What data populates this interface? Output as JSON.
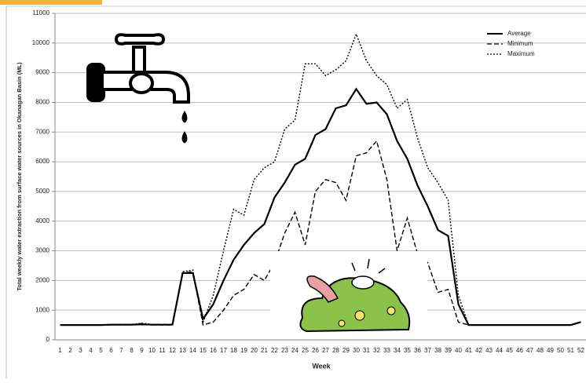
{
  "chart_data": {
    "type": "line",
    "y_label": "Total weekly water extraction from surface water sources in Okanagan Basin (ML)",
    "x_label": "Week",
    "categories": [
      1,
      2,
      3,
      4,
      5,
      6,
      7,
      8,
      9,
      10,
      11,
      12,
      13,
      14,
      15,
      16,
      17,
      18,
      19,
      20,
      21,
      22,
      23,
      24,
      25,
      26,
      27,
      28,
      29,
      30,
      31,
      32,
      33,
      34,
      35,
      36,
      37,
      38,
      39,
      40,
      41,
      42,
      43,
      44,
      45,
      46,
      47,
      48,
      49,
      50,
      51,
      52
    ],
    "series": [
      {
        "name": "Average",
        "color": "#000000",
        "style": "solid",
        "values": [
          500,
          500,
          500,
          500,
          500,
          510,
          510,
          510,
          520,
          510,
          510,
          510,
          2250,
          2250,
          700,
          1200,
          2000,
          2700,
          3200,
          3600,
          3900,
          4800,
          5300,
          5900,
          6100,
          6900,
          7100,
          7800,
          7900,
          8450,
          7950,
          8000,
          7600,
          6700,
          6100,
          5200,
          4500,
          3700,
          3500,
          1200,
          500,
          500,
          500,
          500,
          500,
          500,
          500,
          500,
          500,
          500,
          500,
          600
        ]
      },
      {
        "name": "Minimum",
        "color": "#000000",
        "style": "dashed",
        "values": [
          500,
          500,
          500,
          500,
          500,
          500,
          500,
          500,
          550,
          500,
          500,
          500,
          2250,
          2300,
          500,
          600,
          1000,
          1500,
          1700,
          2200,
          2000,
          2600,
          3600,
          4300,
          3200,
          5000,
          5400,
          5300,
          4700,
          6200,
          6300,
          6700,
          5400,
          3000,
          4100,
          2900,
          2600,
          1600,
          1700,
          600,
          500,
          500,
          500,
          500,
          500,
          500,
          500,
          500,
          500,
          500,
          500,
          600
        ]
      },
      {
        "name": "Maximum",
        "color": "#000000",
        "style": "dotted",
        "values": [
          500,
          500,
          500,
          500,
          500,
          520,
          520,
          520,
          560,
          520,
          520,
          520,
          2300,
          2350,
          600,
          1500,
          3000,
          4400,
          4200,
          5400,
          5800,
          6000,
          7100,
          7400,
          9300,
          9300,
          8900,
          9100,
          9400,
          10300,
          9400,
          8900,
          8600,
          7800,
          8100,
          6800,
          5800,
          5300,
          4700,
          1500,
          500,
          500,
          500,
          500,
          500,
          500,
          500,
          500,
          500,
          500,
          500,
          600
        ]
      }
    ],
    "ylim": [
      0,
      11000
    ],
    "yticks": [
      0,
      1000,
      2000,
      3000,
      4000,
      5000,
      6000,
      7000,
      8000,
      9000,
      10000,
      11000
    ],
    "grid": true,
    "legend": "top-right"
  }
}
